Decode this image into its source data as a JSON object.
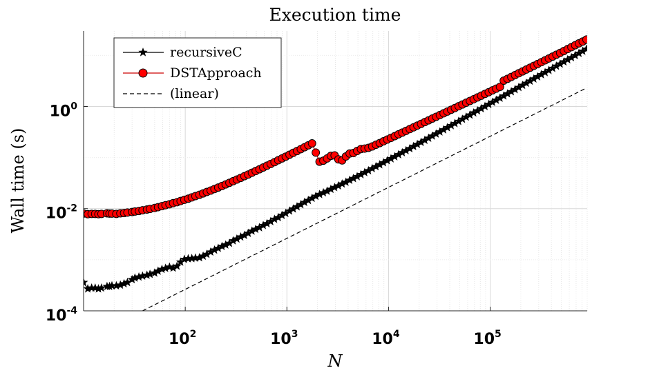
{
  "chart_data": {
    "type": "line",
    "title": "Execution time",
    "xlabel": "N",
    "ylabel": "Wall time (s)",
    "xscale": "log",
    "yscale": "log",
    "xlim": [
      10,
      900000
    ],
    "ylim": [
      0.0001,
      30
    ],
    "grid": true,
    "legend_position": "top-left",
    "x_ticks": [
      {
        "value": 100,
        "base": "10",
        "exp": "2"
      },
      {
        "value": 1000,
        "base": "10",
        "exp": "3"
      },
      {
        "value": 10000,
        "base": "10",
        "exp": "4"
      },
      {
        "value": 100000,
        "base": "10",
        "exp": "5"
      }
    ],
    "y_ticks": [
      {
        "value": 0.0001,
        "base": "10",
        "exp": "-4"
      },
      {
        "value": 0.01,
        "base": "10",
        "exp": "-2"
      },
      {
        "value": 1,
        "base": "10",
        "exp": "0"
      }
    ],
    "series": [
      {
        "name": "recursiveC",
        "color": "#000000",
        "marker": "star",
        "points": [
          [
            10,
            0.00036
          ],
          [
            11,
            0.00027
          ],
          [
            12,
            0.00028
          ],
          [
            13,
            0.00028
          ],
          [
            14,
            0.00027
          ],
          [
            15,
            0.00028
          ],
          [
            17,
            0.0003
          ],
          [
            18,
            0.0003
          ],
          [
            19,
            0.00031
          ],
          [
            21,
            0.00031
          ],
          [
            23,
            0.00032
          ],
          [
            25,
            0.00034
          ],
          [
            27,
            0.00036
          ],
          [
            30,
            0.00041
          ],
          [
            32,
            0.00044
          ],
          [
            35,
            0.00046
          ],
          [
            38,
            0.00048
          ],
          [
            42,
            0.0005
          ],
          [
            45,
            0.00052
          ],
          [
            50,
            0.00055
          ],
          [
            54,
            0.0006
          ],
          [
            59,
            0.00065
          ],
          [
            64,
            0.00068
          ],
          [
            70,
            0.00072
          ],
          [
            76,
            0.00069
          ],
          [
            83,
            0.00075
          ],
          [
            90,
            0.0009
          ],
          [
            98,
            0.00102
          ],
          [
            107,
            0.00105
          ],
          [
            116,
            0.00106
          ],
          [
            126,
            0.00108
          ],
          [
            138,
            0.0011
          ],
          [
            150,
            0.00118
          ],
          [
            163,
            0.00128
          ],
          [
            178,
            0.00142
          ],
          [
            194,
            0.00155
          ],
          [
            211,
            0.00168
          ],
          [
            230,
            0.00183
          ],
          [
            250,
            0.00195
          ],
          [
            272,
            0.0021
          ],
          [
            296,
            0.00235
          ],
          [
            322,
            0.00255
          ],
          [
            351,
            0.0028
          ],
          [
            382,
            0.003
          ],
          [
            416,
            0.0033
          ],
          [
            453,
            0.00365
          ],
          [
            493,
            0.00395
          ],
          [
            537,
            0.00425
          ],
          [
            585,
            0.0047
          ],
          [
            637,
            0.0051
          ],
          [
            693,
            0.0056
          ],
          [
            755,
            0.0062
          ],
          [
            822,
            0.0067
          ],
          [
            895,
            0.0074
          ],
          [
            974,
            0.0081
          ],
          [
            1061,
            0.009
          ],
          [
            1155,
            0.0099
          ],
          [
            1258,
            0.0109
          ],
          [
            1370,
            0.012
          ],
          [
            1491,
            0.0133
          ],
          [
            1624,
            0.0145
          ],
          [
            1768,
            0.016
          ],
          [
            1925,
            0.0175
          ],
          [
            2096,
            0.019
          ],
          [
            2283,
            0.0205
          ],
          [
            2485,
            0.022
          ],
          [
            2706,
            0.024
          ],
          [
            2947,
            0.026
          ],
          [
            3209,
            0.028
          ],
          [
            3494,
            0.0305
          ],
          [
            3804,
            0.033
          ],
          [
            4142,
            0.036
          ],
          [
            4510,
            0.039
          ],
          [
            4911,
            0.0425
          ],
          [
            5348,
            0.0465
          ],
          [
            5823,
            0.051
          ],
          [
            6340,
            0.0555
          ],
          [
            6904,
            0.061
          ],
          [
            7517,
            0.0665
          ],
          [
            8185,
            0.0725
          ],
          [
            8913,
            0.0795
          ],
          [
            9705,
            0.087
          ],
          [
            10567,
            0.095
          ],
          [
            11506,
            0.104
          ],
          [
            12529,
            0.114
          ],
          [
            13642,
            0.125
          ],
          [
            14854,
            0.137
          ],
          [
            16174,
            0.15
          ],
          [
            17612,
            0.165
          ],
          [
            19177,
            0.181
          ],
          [
            20881,
            0.199
          ],
          [
            22736,
            0.218
          ],
          [
            24757,
            0.24
          ],
          [
            26957,
            0.264
          ],
          [
            29353,
            0.29
          ],
          [
            31961,
            0.318
          ],
          [
            34802,
            0.35
          ],
          [
            37895,
            0.385
          ],
          [
            41263,
            0.423
          ],
          [
            44930,
            0.465
          ],
          [
            48923,
            0.512
          ],
          [
            53271,
            0.563
          ],
          [
            58006,
            0.62
          ],
          [
            63161,
            0.682
          ],
          [
            68774,
            0.75
          ],
          [
            74887,
            0.825
          ],
          [
            81542,
            0.908
          ],
          [
            88790,
            1.0
          ],
          [
            96681,
            1.1
          ],
          [
            105274,
            1.21
          ],
          [
            114630,
            1.33
          ],
          [
            124818,
            1.46
          ],
          [
            135911,
            1.61
          ],
          [
            147990,
            1.77
          ],
          [
            161143,
            1.95
          ],
          [
            175465,
            2.14
          ],
          [
            191059,
            2.36
          ],
          [
            208040,
            2.6
          ],
          [
            226530,
            2.86
          ],
          [
            246663,
            3.15
          ],
          [
            268585,
            3.47
          ],
          [
            292456,
            3.82
          ],
          [
            318449,
            4.2
          ],
          [
            346751,
            4.62
          ],
          [
            377570,
            5.09
          ],
          [
            411127,
            5.6
          ],
          [
            447666,
            6.17
          ],
          [
            487453,
            6.79
          ],
          [
            530776,
            7.47
          ],
          [
            577950,
            8.23
          ],
          [
            629316,
            9.06
          ],
          [
            685248,
            9.97
          ],
          [
            746151,
            10.98
          ],
          [
            812466,
            12.09
          ],
          [
            884677,
            13.3
          ]
        ]
      },
      {
        "name": "DSTApproach",
        "color": "#ff0000",
        "marker": "circle",
        "points": [
          [
            10,
            0.008
          ],
          [
            11,
            0.0078
          ],
          [
            12,
            0.0079
          ],
          [
            13,
            0.0079
          ],
          [
            14,
            0.0078
          ],
          [
            15,
            0.0079
          ],
          [
            17,
            0.0081
          ],
          [
            18,
            0.008
          ],
          [
            19,
            0.008
          ],
          [
            21,
            0.0079
          ],
          [
            23,
            0.0081
          ],
          [
            25,
            0.0082
          ],
          [
            27,
            0.0084
          ],
          [
            30,
            0.0086
          ],
          [
            32,
            0.0088
          ],
          [
            35,
            0.009
          ],
          [
            38,
            0.0093
          ],
          [
            42,
            0.0096
          ],
          [
            45,
            0.0099
          ],
          [
            50,
            0.0103
          ],
          [
            54,
            0.0107
          ],
          [
            59,
            0.0112
          ],
          [
            64,
            0.0117
          ],
          [
            70,
            0.0122
          ],
          [
            76,
            0.0128
          ],
          [
            83,
            0.0134
          ],
          [
            90,
            0.0141
          ],
          [
            98,
            0.0149
          ],
          [
            107,
            0.0157
          ],
          [
            116,
            0.0166
          ],
          [
            126,
            0.0176
          ],
          [
            138,
            0.0187
          ],
          [
            150,
            0.0199
          ],
          [
            163,
            0.0212
          ],
          [
            178,
            0.0226
          ],
          [
            194,
            0.0242
          ],
          [
            211,
            0.0259
          ],
          [
            230,
            0.0278
          ],
          [
            250,
            0.0298
          ],
          [
            272,
            0.0321
          ],
          [
            296,
            0.0345
          ],
          [
            322,
            0.0371
          ],
          [
            351,
            0.04
          ],
          [
            382,
            0.0432
          ],
          [
            416,
            0.0466
          ],
          [
            453,
            0.0504
          ],
          [
            493,
            0.0545
          ],
          [
            537,
            0.059
          ],
          [
            585,
            0.0639
          ],
          [
            637,
            0.0693
          ],
          [
            693,
            0.0751
          ],
          [
            755,
            0.0815
          ],
          [
            822,
            0.0885
          ],
          [
            895,
            0.0962
          ],
          [
            974,
            0.1045
          ],
          [
            1061,
            0.1136
          ],
          [
            1155,
            0.1236
          ],
          [
            1258,
            0.1345
          ],
          [
            1370,
            0.1465
          ],
          [
            1491,
            0.1596
          ],
          [
            1624,
            0.1738
          ],
          [
            1768,
            0.1894
          ],
          [
            1925,
            0.125
          ],
          [
            2096,
            0.083
          ],
          [
            2283,
            0.087
          ],
          [
            2485,
            0.096
          ],
          [
            2706,
            0.108
          ],
          [
            2947,
            0.11
          ],
          [
            3209,
            0.092
          ],
          [
            3494,
            0.088
          ],
          [
            3804,
            0.105
          ],
          [
            4142,
            0.12
          ],
          [
            4510,
            0.123
          ],
          [
            4911,
            0.135
          ],
          [
            5348,
            0.147
          ],
          [
            5823,
            0.15
          ],
          [
            6340,
            0.155
          ],
          [
            6904,
            0.165
          ],
          [
            7517,
            0.178
          ],
          [
            8185,
            0.192
          ],
          [
            8913,
            0.208
          ],
          [
            9705,
            0.225
          ],
          [
            10567,
            0.243
          ],
          [
            11506,
            0.263
          ],
          [
            12529,
            0.285
          ],
          [
            13642,
            0.308
          ],
          [
            14854,
            0.333
          ],
          [
            16174,
            0.361
          ],
          [
            17612,
            0.39
          ],
          [
            19177,
            0.423
          ],
          [
            20881,
            0.457
          ],
          [
            22736,
            0.495
          ],
          [
            24757,
            0.536
          ],
          [
            26957,
            0.58
          ],
          [
            29353,
            0.628
          ],
          [
            31961,
            0.68
          ],
          [
            34802,
            0.735
          ],
          [
            37895,
            0.796
          ],
          [
            41263,
            0.862
          ],
          [
            44930,
            0.933
          ],
          [
            48923,
            1.01
          ],
          [
            53271,
            1.094
          ],
          [
            58006,
            1.184
          ],
          [
            63161,
            1.282
          ],
          [
            68774,
            1.388
          ],
          [
            74887,
            1.503
          ],
          [
            81542,
            1.627
          ],
          [
            88790,
            1.762
          ],
          [
            96681,
            1.907
          ],
          [
            105274,
            2.065
          ],
          [
            114630,
            2.236
          ],
          [
            124818,
            2.421
          ],
          [
            135911,
            3.2
          ],
          [
            147990,
            3.48
          ],
          [
            161143,
            3.78
          ],
          [
            175465,
            4.11
          ],
          [
            191059,
            4.47
          ],
          [
            208040,
            4.86
          ],
          [
            226530,
            5.28
          ],
          [
            246663,
            5.74
          ],
          [
            268585,
            6.24
          ],
          [
            292456,
            6.78
          ],
          [
            318449,
            7.37
          ],
          [
            346751,
            8.01
          ],
          [
            377570,
            8.71
          ],
          [
            411127,
            9.47
          ],
          [
            447666,
            10.3
          ],
          [
            487453,
            11.2
          ],
          [
            530776,
            12.2
          ],
          [
            577950,
            13.3
          ],
          [
            629316,
            14.5
          ],
          [
            685248,
            15.8
          ],
          [
            746151,
            17.2
          ],
          [
            812466,
            18.7
          ],
          [
            884677,
            20.4
          ]
        ]
      },
      {
        "name": "(linear)",
        "color": "#000000",
        "marker": "none",
        "dash": true,
        "points": [
          [
            38,
            0.0001
          ],
          [
            884677,
            2.3
          ]
        ]
      }
    ]
  }
}
